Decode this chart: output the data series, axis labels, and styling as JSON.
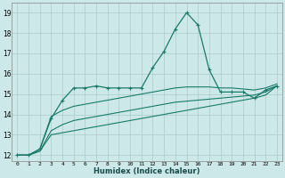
{
  "xlabel": "Humidex (Indice chaleur)",
  "bg_color": "#cce8e8",
  "grid_color": "#aacccc",
  "line_color": "#1a7a6a",
  "xlim": [
    -0.5,
    23.5
  ],
  "ylim": [
    11.7,
    19.5
  ],
  "xticks": [
    0,
    1,
    2,
    3,
    4,
    5,
    6,
    7,
    8,
    9,
    10,
    11,
    12,
    13,
    14,
    15,
    16,
    17,
    18,
    19,
    20,
    21,
    22,
    23
  ],
  "yticks": [
    12,
    13,
    14,
    15,
    16,
    17,
    18,
    19
  ],
  "series1_x": [
    0,
    1,
    2,
    3,
    4,
    5,
    6,
    7,
    8,
    9,
    10,
    11,
    12,
    13,
    14,
    15,
    16,
    17,
    18,
    19,
    20,
    21,
    22,
    23
  ],
  "series1_y": [
    12.0,
    12.0,
    12.3,
    13.8,
    14.7,
    15.3,
    15.3,
    15.4,
    15.3,
    15.3,
    15.3,
    15.3,
    16.3,
    17.1,
    18.2,
    19.0,
    18.4,
    16.2,
    15.1,
    15.1,
    15.1,
    14.8,
    15.2,
    15.4
  ],
  "series2_x": [
    0,
    1,
    2,
    3,
    4,
    5,
    6,
    7,
    8,
    9,
    10,
    11,
    12,
    13,
    14,
    15,
    16,
    17,
    18,
    19,
    20,
    21,
    22,
    23
  ],
  "series2_y": [
    12.0,
    12.0,
    12.3,
    13.9,
    14.2,
    14.4,
    14.5,
    14.6,
    14.7,
    14.8,
    14.9,
    15.0,
    15.1,
    15.2,
    15.3,
    15.35,
    15.35,
    15.35,
    15.3,
    15.3,
    15.25,
    15.2,
    15.3,
    15.5
  ],
  "series3_x": [
    0,
    1,
    2,
    3,
    4,
    5,
    6,
    7,
    8,
    9,
    10,
    11,
    12,
    13,
    14,
    15,
    16,
    17,
    18,
    19,
    20,
    21,
    22,
    23
  ],
  "series3_y": [
    12.0,
    12.0,
    12.2,
    13.2,
    13.5,
    13.7,
    13.8,
    13.9,
    14.0,
    14.1,
    14.2,
    14.3,
    14.4,
    14.5,
    14.6,
    14.65,
    14.7,
    14.75,
    14.8,
    14.85,
    14.9,
    14.95,
    15.1,
    15.4
  ],
  "series4_x": [
    0,
    1,
    2,
    3,
    4,
    5,
    6,
    7,
    8,
    9,
    10,
    11,
    12,
    13,
    14,
    15,
    16,
    17,
    18,
    19,
    20,
    21,
    22,
    23
  ],
  "series4_y": [
    12.0,
    12.0,
    12.2,
    13.0,
    13.1,
    13.2,
    13.3,
    13.4,
    13.5,
    13.6,
    13.7,
    13.8,
    13.9,
    14.0,
    14.1,
    14.2,
    14.3,
    14.4,
    14.5,
    14.6,
    14.7,
    14.8,
    14.95,
    15.4
  ]
}
